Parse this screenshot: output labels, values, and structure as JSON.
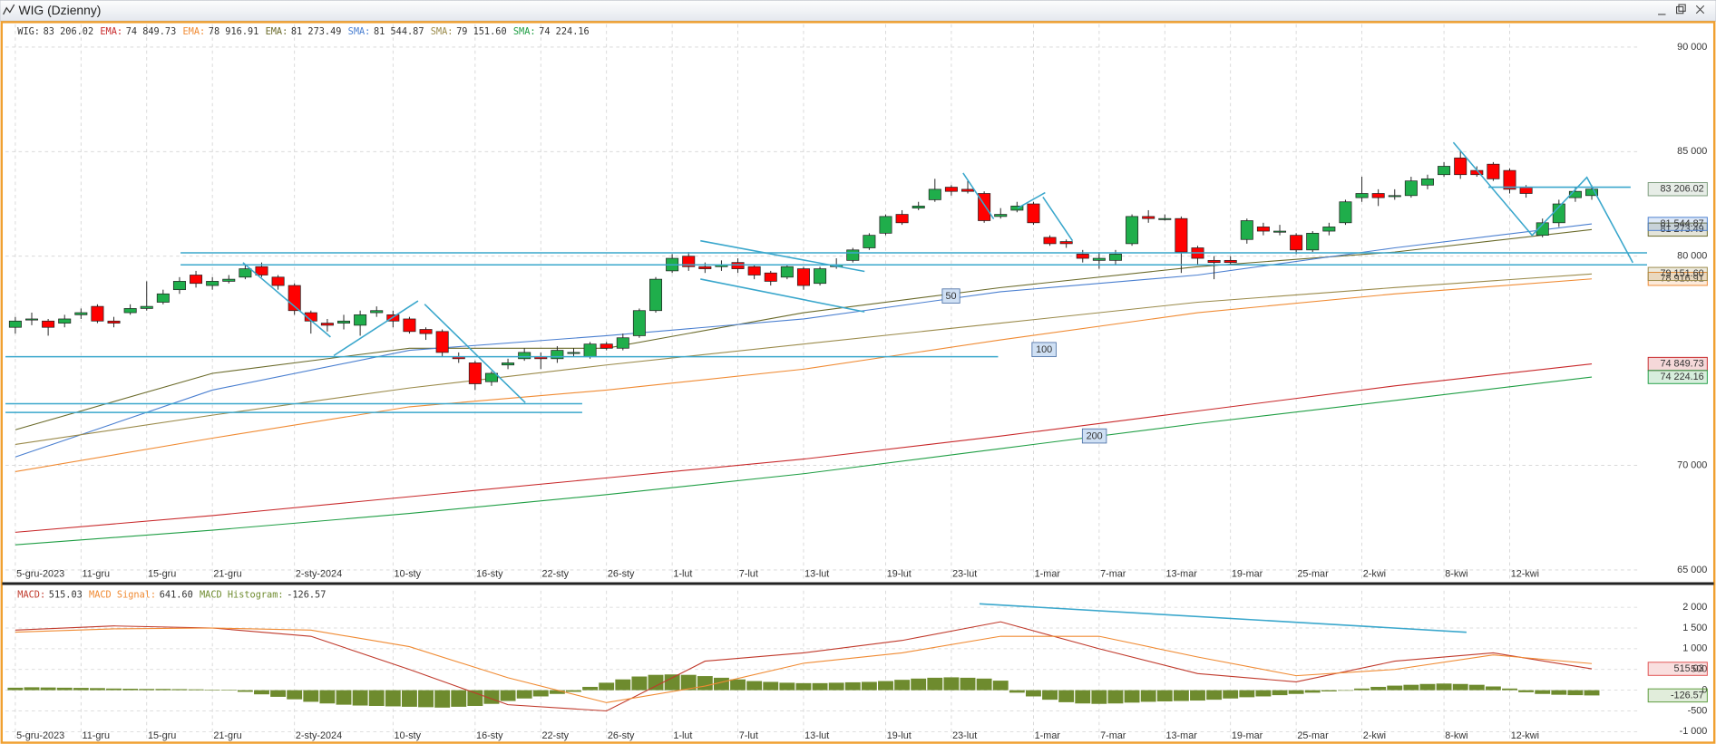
{
  "window": {
    "title": "WIG (Dzienny)"
  },
  "chart_data": [
    {
      "type": "candlestick",
      "name": "WIG:",
      "last_label": "83 206.02",
      "colors": {
        "up": "#1fae4b",
        "down": "#ff0000"
      },
      "open": [
        76600,
        77000,
        76900,
        76800,
        77200,
        77600,
        76900,
        77300,
        77500,
        77800,
        78400,
        79100,
        78600,
        78800,
        79000,
        79500,
        79000,
        78600,
        77300,
        76800,
        76800,
        76700,
        77300,
        77200,
        77000,
        76500,
        76400,
        75200,
        74900,
        74000,
        74800,
        75100,
        75200,
        75100,
        75400,
        75200,
        75800,
        75600,
        76200,
        77400,
        79300,
        80000,
        79500,
        79500,
        79700,
        79500,
        79200,
        79000,
        79400,
        78700,
        79500,
        79800,
        80400,
        81100,
        82000,
        82300,
        82700,
        83300,
        83200,
        83000,
        81900,
        82200,
        82500,
        80900,
        80700,
        80100,
        79800,
        79800,
        80600,
        81900,
        81800,
        81800,
        80400,
        79800,
        79800,
        80800,
        81400,
        81200,
        81000,
        80300,
        81200,
        81600,
        82800,
        83000,
        82900,
        82900,
        83400,
        83900,
        84700,
        84100,
        84400,
        84100,
        83300,
        81000,
        81600,
        82800,
        82900
      ],
      "high": [
        77100,
        77300,
        77000,
        77200,
        77500,
        77700,
        77100,
        77700,
        78800,
        78400,
        79000,
        79300,
        79000,
        79100,
        79600,
        79700,
        79100,
        78700,
        77400,
        77000,
        77200,
        77400,
        77600,
        77400,
        77100,
        76600,
        76500,
        75400,
        75000,
        74500,
        75100,
        75600,
        75400,
        75700,
        75600,
        75900,
        75900,
        76300,
        77500,
        79000,
        80100,
        80200,
        79700,
        79800,
        79900,
        79600,
        79300,
        79600,
        79500,
        79500,
        79900,
        80400,
        81100,
        82000,
        82200,
        82600,
        83700,
        83400,
        83600,
        83100,
        82300,
        82600,
        82600,
        81000,
        80800,
        80300,
        80200,
        80300,
        82000,
        82200,
        82000,
        81900,
        80500,
        80000,
        80000,
        81800,
        81600,
        81500,
        81100,
        81200,
        81600,
        82700,
        83800,
        83200,
        83200,
        83800,
        83900,
        84500,
        85000,
        84300,
        84500,
        84200,
        83400,
        81800,
        82700,
        83300,
        83400
      ],
      "low": [
        76300,
        76700,
        76200,
        76600,
        77000,
        76800,
        76600,
        77200,
        77400,
        77700,
        78200,
        78500,
        78400,
        78700,
        78900,
        79000,
        78400,
        77200,
        76300,
        76400,
        76500,
        76200,
        77100,
        76600,
        76300,
        76000,
        75200,
        74900,
        73600,
        73800,
        74600,
        75000,
        74600,
        74900,
        75200,
        75100,
        75500,
        75500,
        76100,
        77300,
        79200,
        79300,
        79200,
        79300,
        79200,
        78900,
        78600,
        78900,
        78400,
        78600,
        79400,
        79700,
        80300,
        81000,
        81500,
        82200,
        82600,
        82900,
        83000,
        81600,
        81800,
        82100,
        81500,
        80500,
        80400,
        79700,
        79400,
        79600,
        80500,
        81600,
        81700,
        79200,
        79600,
        78900,
        79600,
        80600,
        81000,
        81000,
        80100,
        80200,
        81000,
        81500,
        82600,
        82400,
        82700,
        82800,
        83200,
        83800,
        83700,
        83800,
        83600,
        83000,
        82800,
        80900,
        81400,
        82600,
        82700
      ],
      "close": [
        76900,
        77000,
        76600,
        77000,
        77300,
        76900,
        76800,
        77500,
        77600,
        78200,
        78800,
        78700,
        78800,
        78900,
        79400,
        79100,
        78600,
        77400,
        76900,
        76700,
        76900,
        77200,
        77400,
        76900,
        76400,
        76300,
        75400,
        75100,
        73900,
        74400,
        74900,
        75400,
        75100,
        75500,
        75400,
        75800,
        75600,
        76100,
        77400,
        78900,
        79900,
        79500,
        79400,
        79600,
        79400,
        79100,
        78800,
        79500,
        78600,
        79400,
        79600,
        80300,
        81000,
        81900,
        81600,
        82400,
        83200,
        83100,
        83100,
        81700,
        82000,
        82400,
        81600,
        80600,
        80600,
        79900,
        79900,
        80100,
        81900,
        81800,
        81800,
        80200,
        79900,
        79700,
        79700,
        81700,
        81200,
        81200,
        80300,
        81100,
        81400,
        82600,
        83000,
        82800,
        82900,
        83600,
        83700,
        84300,
        83900,
        83900,
        83700,
        83200,
        83000,
        81600,
        82500,
        83100,
        83206.02
      ],
      "indicators": [
        {
          "name": "EMA:",
          "color": "#c8282a",
          "x": [
            0,
            12,
            24,
            36,
            48,
            60,
            72,
            84,
            96
          ],
          "values": [
            66800,
            67600,
            68500,
            69400,
            70300,
            71400,
            72600,
            73800,
            74849.73
          ],
          "last_label": "74 849.73"
        },
        {
          "name": "EMA:",
          "color": "#f08a32",
          "x": [
            0,
            12,
            24,
            36,
            48,
            60,
            72,
            84,
            96
          ],
          "values": [
            69700,
            71300,
            72800,
            73600,
            74600,
            76000,
            77300,
            78200,
            78916.91
          ],
          "last_label": "78 916.91"
        },
        {
          "name": "EMA:",
          "color": "#6a6a2a",
          "x": [
            0,
            12,
            24,
            36,
            48,
            60,
            72,
            84,
            96
          ],
          "values": [
            71700,
            74400,
            75600,
            75600,
            77300,
            78500,
            79500,
            80200,
            81273.49
          ],
          "last_label": "81 273.49"
        },
        {
          "name": "SMA:",
          "color": "#4a7fd0",
          "x": [
            0,
            12,
            24,
            36,
            48,
            60,
            72,
            84,
            96
          ],
          "values": [
            70400,
            73600,
            75500,
            76200,
            77000,
            78300,
            79100,
            80400,
            81544.87
          ],
          "last_label": "81 544.87"
        },
        {
          "name": "SMA:",
          "color": "#9a8a4a",
          "x": [
            0,
            12,
            24,
            36,
            48,
            60,
            72,
            84,
            96
          ],
          "values": [
            71000,
            72400,
            73700,
            74800,
            75800,
            76800,
            77800,
            78500,
            79151.6
          ],
          "last_label": "79 151.60"
        },
        {
          "name": "SMA:",
          "color": "#1f9e44",
          "x": [
            0,
            12,
            24,
            36,
            48,
            60,
            72,
            84,
            96
          ],
          "values": [
            66200,
            66900,
            67700,
            68600,
            69600,
            70800,
            72000,
            73100,
            74224.16
          ],
          "last_label": "74 224.16"
        }
      ],
      "annotations": [
        50,
        100,
        200
      ],
      "xlim": [
        -0.6,
        98.9
      ],
      "ylim": [
        64530,
        91090
      ],
      "yticks": [
        {
          "value": 65000,
          "label": "65 000"
        },
        {
          "value": 70000,
          "label": "70 000"
        },
        {
          "value": 80000,
          "label": "80 000"
        },
        {
          "value": 85000,
          "label": "85 000"
        },
        {
          "value": 90000,
          "label": "90 000"
        }
      ],
      "xticks": [
        {
          "value": 0,
          "label": "5-gru-2023"
        },
        {
          "value": 4,
          "label": "11-gru"
        },
        {
          "value": 8,
          "label": "15-gru"
        },
        {
          "value": 12,
          "label": "21-gru"
        },
        {
          "value": 17,
          "label": "2-sty-2024"
        },
        {
          "value": 23,
          "label": "10-sty"
        },
        {
          "value": 28,
          "label": "16-sty"
        },
        {
          "value": 32,
          "label": "22-sty"
        },
        {
          "value": 36,
          "label": "26-sty"
        },
        {
          "value": 40,
          "label": "1-lut"
        },
        {
          "value": 44,
          "label": "7-lut"
        },
        {
          "value": 48,
          "label": "13-lut"
        },
        {
          "value": 53,
          "label": "19-lut"
        },
        {
          "value": 57,
          "label": "23-lut"
        },
        {
          "value": 62,
          "label": "1-mar"
        },
        {
          "value": 66,
          "label": "7-mar"
        },
        {
          "value": 70,
          "label": "13-mar"
        },
        {
          "value": 74,
          "label": "19-mar"
        },
        {
          "value": 78,
          "label": "25-mar"
        },
        {
          "value": 82,
          "label": "2-kwi"
        },
        {
          "value": 87,
          "label": "8-kwi"
        },
        {
          "value": 91,
          "label": "12-kwi"
        }
      ],
      "grid": true
    },
    {
      "type": "macd",
      "series": [
        {
          "name": "MACD:",
          "color": "#c0392b",
          "x": [
            0,
            6,
            12,
            18,
            24,
            30,
            36,
            42,
            48,
            54,
            60,
            66,
            72,
            78,
            84,
            90,
            96
          ],
          "values": [
            1450,
            1550,
            1500,
            1300,
            500,
            -350,
            -500,
            700,
            900,
            1200,
            1650,
            1000,
            400,
            200,
            700,
            900,
            515.03
          ],
          "last_label": "515.03"
        },
        {
          "name": "MACD Signal:",
          "color": "#f08a32",
          "x": [
            0,
            6,
            12,
            18,
            24,
            30,
            36,
            42,
            48,
            54,
            60,
            66,
            72,
            78,
            84,
            90,
            96
          ],
          "values": [
            1400,
            1480,
            1500,
            1450,
            1050,
            300,
            -300,
            100,
            650,
            900,
            1300,
            1300,
            800,
            350,
            500,
            850,
            641.6
          ],
          "last_label": "641.60"
        }
      ],
      "histogram": {
        "name": "MACD Histogram:",
        "color": "#6e8b2e",
        "last_label": "-126.57",
        "values": [
          60,
          70,
          65,
          60,
          55,
          50,
          40,
          35,
          30,
          30,
          25,
          20,
          10,
          5,
          -40,
          -100,
          -160,
          -220,
          -280,
          -320,
          -350,
          -370,
          -380,
          -390,
          -400,
          -410,
          -420,
          -400,
          -380,
          -330,
          -260,
          -200,
          -150,
          -90,
          -40,
          80,
          180,
          260,
          330,
          370,
          380,
          370,
          340,
          300,
          260,
          220,
          200,
          180,
          170,
          170,
          180,
          190,
          200,
          220,
          250,
          280,
          300,
          310,
          300,
          280,
          230,
          -60,
          -150,
          -230,
          -290,
          -320,
          -330,
          -320,
          -300,
          -280,
          -270,
          -260,
          -250,
          -230,
          -200,
          -170,
          -150,
          -120,
          -90,
          -60,
          -30,
          -10,
          40,
          80,
          110,
          130,
          150,
          160,
          150,
          130,
          90,
          40,
          -50,
          -90,
          -110,
          -120,
          -126.57
        ]
      },
      "ylim": [
        -1240,
        2400
      ],
      "yticks": [
        {
          "value": -1000,
          "label": "-1 000"
        },
        -500,
        0,
        500,
        {
          "value": 1000,
          "label": "1 000"
        },
        {
          "value": 1500,
          "label": "1 500"
        },
        {
          "value": 2000,
          "label": "2 000"
        }
      ],
      "grid": true
    }
  ]
}
